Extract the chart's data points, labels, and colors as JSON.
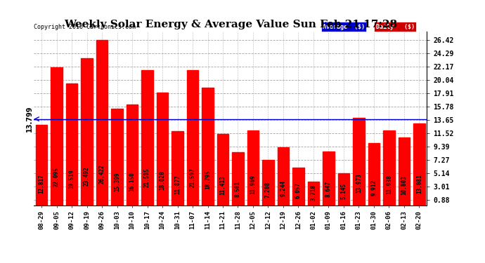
{
  "title": "Weekly Solar Energy & Average Value Sun Feb 21 17:28",
  "copyright": "Copyright 2016 Cartronics.com",
  "categories": [
    "08-29",
    "09-05",
    "09-12",
    "09-19",
    "09-26",
    "10-03",
    "10-10",
    "10-17",
    "10-24",
    "10-31",
    "11-07",
    "11-14",
    "11-21",
    "11-28",
    "12-05",
    "12-12",
    "12-19",
    "12-26",
    "01-02",
    "01-09",
    "01-16",
    "01-23",
    "01-30",
    "02-06",
    "02-13",
    "02-20"
  ],
  "values": [
    12.817,
    22.095,
    19.519,
    23.492,
    26.422,
    15.399,
    16.15,
    21.585,
    18.02,
    11.877,
    21.597,
    18.795,
    11.413,
    8.501,
    11.969,
    7.208,
    9.244,
    6.057,
    3.718,
    8.647,
    5.145,
    13.973,
    9.912,
    11.938,
    10.803,
    13.081
  ],
  "average_line": 13.799,
  "bar_color": "#ff0000",
  "average_line_color": "#0000cc",
  "background_color": "#ffffff",
  "grid_color": "#999999",
  "yticks_right": [
    0.88,
    3.01,
    5.14,
    7.27,
    9.39,
    11.52,
    13.65,
    15.78,
    17.91,
    20.04,
    22.17,
    24.29,
    26.42
  ],
  "ylim": [
    0.0,
    27.8
  ],
  "title_fontsize": 11,
  "bar_label_fontsize": 5.5,
  "tick_fontsize": 7,
  "xtick_fontsize": 6.5,
  "avg_label": "13.799",
  "legend_avg_color": "#0000cc",
  "legend_daily_color": "#cc0000",
  "legend_avg_text": "Average  ($)",
  "legend_daily_text": "Daily   ($)"
}
